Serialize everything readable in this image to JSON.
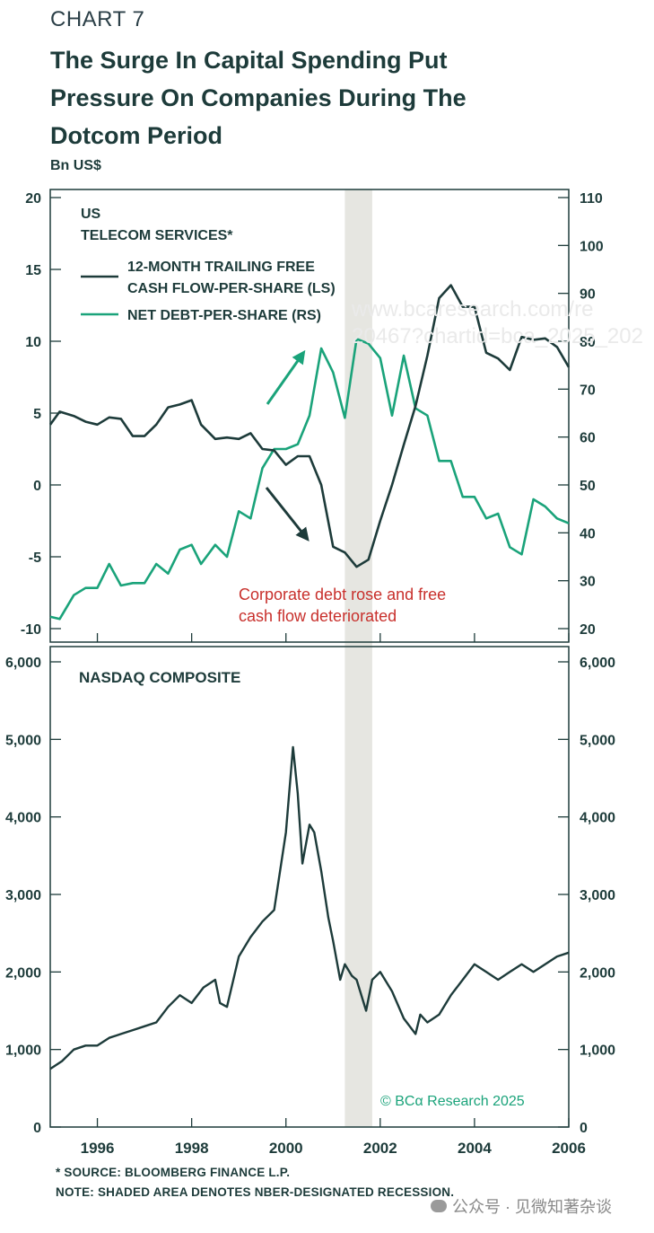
{
  "header": {
    "chart_number": "CHART 7",
    "title_lines": [
      "The Surge In Capital Spending Put",
      "Pressure On Companies During The",
      "Dotcom Period"
    ],
    "unit": "Bn US$"
  },
  "colors": {
    "dark": "#1d3b3a",
    "green": "#1aa37a",
    "shade": "#e6e6e1",
    "annotation_red": "#c8302c"
  },
  "footer": {
    "source": "* SOURCE: BLOOMBERG FINANCE L.P.",
    "note": "NOTE: SHADED AREA DENOTES NBER-DESIGNATED RECESSION."
  },
  "watermark": {
    "text": "公众号 · 见微知著杂谈",
    "url_line1": "www.bcaresearch.com/re",
    "url_line2": "20467?chartid=bca_2025_202"
  },
  "chart_data": [
    {
      "type": "line",
      "title_lines": [
        "US",
        "TELECOM SERVICES*"
      ],
      "legend": [
        "12-MONTH TRAILING FREE CASH FLOW-PER-SHARE (LS)",
        "NET DEBT-PER-SHARE (RS)"
      ],
      "legend_lines": [
        [
          "12-MONTH TRAILING FREE",
          "CASH FLOW-PER-SHARE (LS)"
        ],
        [
          "NET DEBT-PER-SHARE (RS)"
        ]
      ],
      "annotation_lines": [
        "Corporate debt rose and free",
        "cash flow deteriorated"
      ],
      "left_ylim": [
        -10,
        20
      ],
      "left_ticks": [
        "-10",
        "-5",
        "0",
        "5",
        "10",
        "15",
        "20"
      ],
      "right_ylim": [
        20,
        110
      ],
      "right_ticks": [
        "20",
        "30",
        "40",
        "50",
        "60",
        "70",
        "80",
        "90",
        "100",
        "110"
      ],
      "xlim": [
        1995.0,
        2006.0
      ],
      "recession": [
        2001.25,
        2001.83
      ],
      "series": [
        {
          "name": "12-MONTH TRAILING FREE CASH FLOW-PER-SHARE (LS)",
          "axis": "left",
          "x": [
            1995.0,
            1995.2,
            1995.5,
            1995.75,
            1996.0,
            1996.25,
            1996.5,
            1996.75,
            1997.0,
            1997.25,
            1997.5,
            1997.75,
            1998.0,
            1998.2,
            1998.5,
            1998.75,
            1999.0,
            1999.25,
            1999.5,
            1999.75,
            2000.0,
            2000.25,
            2000.5,
            2000.75,
            2001.0,
            2001.25,
            2001.5,
            2001.75,
            2002.0,
            2002.25,
            2002.5,
            2002.75,
            2003.0,
            2003.25,
            2003.5,
            2003.75,
            2004.0,
            2004.25,
            2004.5,
            2004.75,
            2005.0,
            2005.25,
            2005.5,
            2005.75,
            2006.0
          ],
          "values": [
            4.2,
            5.1,
            4.8,
            4.4,
            4.2,
            4.7,
            4.6,
            3.4,
            3.4,
            4.2,
            5.4,
            5.6,
            5.9,
            4.2,
            3.2,
            3.3,
            3.2,
            3.6,
            2.5,
            2.4,
            1.4,
            2.0,
            2.0,
            0.0,
            -4.3,
            -4.7,
            -5.7,
            -5.2,
            -2.5,
            0.0,
            2.8,
            5.5,
            9.0,
            13.0,
            13.9,
            12.4,
            12.4,
            9.2,
            8.8,
            8.0,
            10.3,
            10.1,
            10.2,
            9.6,
            8.2
          ]
        },
        {
          "name": "NET DEBT-PER-SHARE (RS)",
          "axis": "right",
          "x": [
            1995.0,
            1995.2,
            1995.5,
            1995.75,
            1996.0,
            1996.25,
            1996.5,
            1996.75,
            1997.0,
            1997.25,
            1997.5,
            1997.75,
            1998.0,
            1998.2,
            1998.5,
            1998.75,
            1999.0,
            1999.25,
            1999.5,
            1999.75,
            2000.0,
            2000.25,
            2000.5,
            2000.75,
            2001.0,
            2001.25,
            2001.5,
            2001.75,
            2002.0,
            2002.25,
            2002.5,
            2002.75,
            2003.0,
            2003.25,
            2003.5,
            2003.75,
            2004.0,
            2004.25,
            2004.5,
            2004.75,
            2005.0,
            2005.25,
            2005.5,
            2005.75,
            2006.0
          ],
          "values": [
            22.5,
            22.0,
            27.0,
            28.5,
            28.5,
            33.5,
            29.0,
            29.5,
            29.5,
            33.5,
            31.5,
            36.5,
            37.5,
            33.5,
            37.5,
            35.0,
            44.5,
            43.0,
            53.5,
            57.5,
            57.5,
            58.5,
            64.5,
            78.5,
            73.5,
            64.0,
            80.5,
            79.5,
            76.5,
            64.5,
            77.0,
            66.0,
            64.5,
            55.0,
            55.0,
            47.5,
            47.5,
            43.0,
            44.0,
            37.0,
            35.5,
            47.0,
            45.5,
            43.0,
            42.0
          ]
        }
      ]
    },
    {
      "type": "line",
      "title": "NASDAQ COMPOSITE",
      "ylim": [
        0,
        6000
      ],
      "left_ticks": [
        "0",
        "1,000",
        "2,000",
        "3,000",
        "4,000",
        "5,000",
        "6,000"
      ],
      "right_ticks": [
        "0",
        "1,000",
        "2,000",
        "3,000",
        "4,000",
        "5,000",
        "6,000"
      ],
      "x_ticks": [
        "1996",
        "1998",
        "2000",
        "2002",
        "2004",
        "2006"
      ],
      "xlim": [
        1995.0,
        2006.0
      ],
      "recession": [
        2001.25,
        2001.83
      ],
      "series": [
        {
          "name": "NASDAQ COMPOSITE",
          "x": [
            1995.0,
            1995.25,
            1995.5,
            1995.75,
            1996.0,
            1996.25,
            1996.5,
            1996.75,
            1997.0,
            1997.25,
            1997.5,
            1997.75,
            1998.0,
            1998.25,
            1998.5,
            1998.6,
            1998.75,
            1999.0,
            1999.25,
            1999.5,
            1999.75,
            2000.0,
            2000.15,
            2000.25,
            2000.35,
            2000.5,
            2000.6,
            2000.75,
            2000.9,
            2001.0,
            2001.15,
            2001.25,
            2001.4,
            2001.5,
            2001.7,
            2001.83,
            2002.0,
            2002.25,
            2002.5,
            2002.75,
            2002.85,
            2003.0,
            2003.25,
            2003.5,
            2003.75,
            2004.0,
            2004.25,
            2004.5,
            2004.75,
            2005.0,
            2005.25,
            2005.5,
            2005.75,
            2006.0
          ],
          "values": [
            750,
            850,
            1000,
            1050,
            1050,
            1150,
            1200,
            1250,
            1300,
            1350,
            1550,
            1700,
            1600,
            1800,
            1900,
            1600,
            1550,
            2200,
            2450,
            2650,
            2800,
            3800,
            4900,
            4300,
            3400,
            3900,
            3800,
            3300,
            2700,
            2400,
            1900,
            2100,
            1950,
            1900,
            1500,
            1900,
            2000,
            1750,
            1400,
            1200,
            1450,
            1350,
            1450,
            1700,
            1900,
            2100,
            2000,
            1900,
            2000,
            2100,
            2000,
            2100,
            2200,
            2250
          ]
        }
      ]
    }
  ]
}
